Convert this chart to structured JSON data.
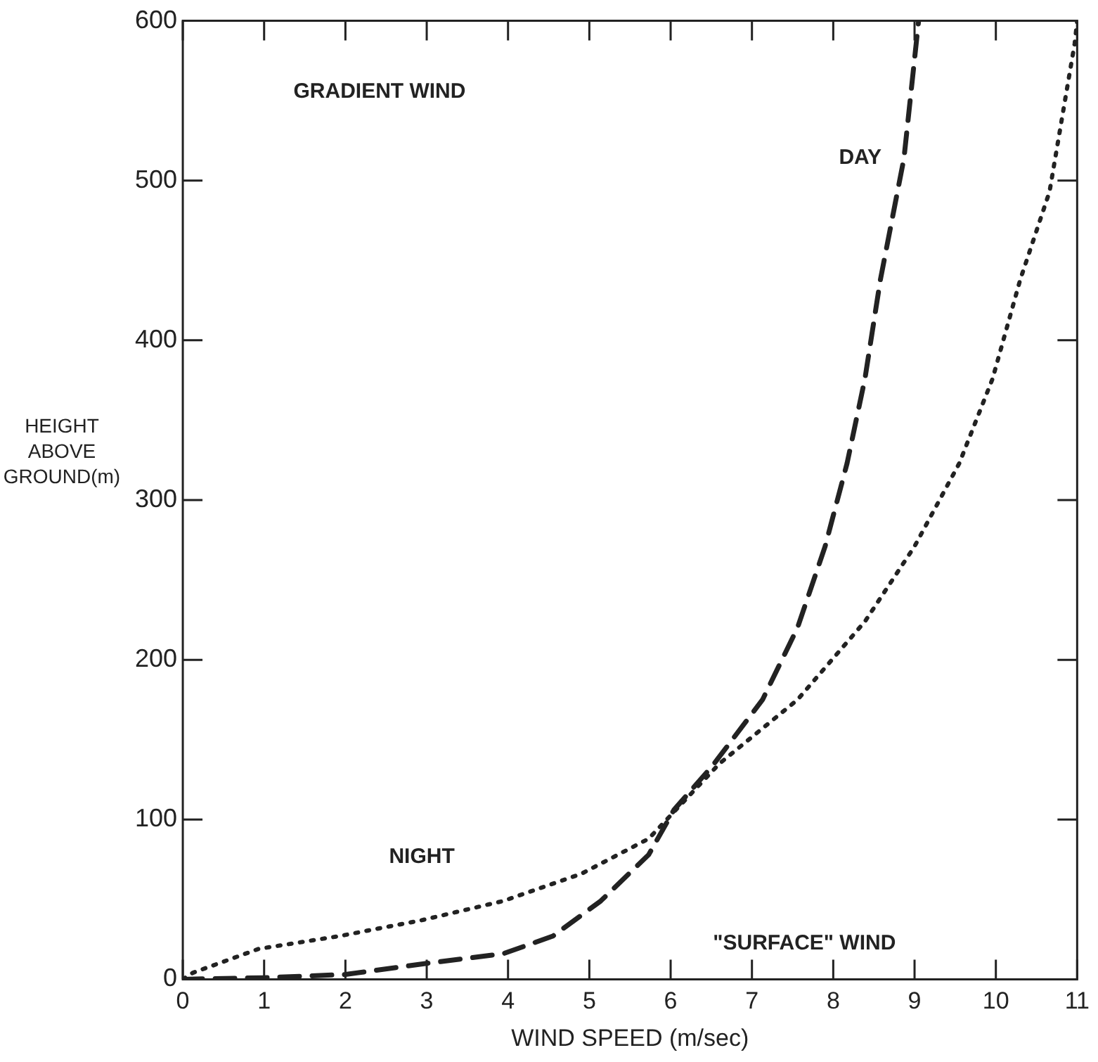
{
  "chart_data": {
    "type": "line",
    "xlabel": "WIND SPEED (m/sec)",
    "ylabel": "HEIGHT ABOVE GROUND(m)",
    "xlim": [
      0,
      11
    ],
    "ylim": [
      0,
      600
    ],
    "xticks": [
      0,
      1,
      2,
      3,
      4,
      5,
      6,
      7,
      8,
      9,
      10,
      11
    ],
    "yticks": [
      0,
      100,
      200,
      300,
      400,
      500,
      600
    ],
    "grid": false,
    "legend": false,
    "marker": "none",
    "series": [
      {
        "name": "DAY",
        "color": "#222222",
        "line_style": "dashed",
        "x": [
          0,
          1,
          2,
          3,
          3.94,
          4.55,
          5.14,
          5.73,
          6.04,
          6.52,
          7.13,
          7.56,
          7.9,
          8.17,
          8.39,
          8.58,
          8.87,
          9.05
        ],
        "values": [
          0,
          1,
          3,
          10,
          16,
          27,
          49,
          78,
          106,
          134,
          175,
          220,
          271,
          323,
          376,
          438,
          514,
          600
        ]
      },
      {
        "name": "NIGHT",
        "color": "#222222",
        "line_style": "dotted",
        "x": [
          0,
          0.12,
          0.93,
          1.92,
          2.94,
          3.94,
          4.9,
          5.73,
          6.1,
          6.6,
          7.56,
          8.39,
          9.0,
          9.55,
          9.96,
          10.3,
          10.66,
          10.97,
          11
        ],
        "values": [
          0,
          4,
          19,
          27,
          37,
          49,
          66,
          88,
          108,
          135,
          175,
          224,
          271,
          323,
          376,
          438,
          493,
          586,
          600
        ]
      }
    ],
    "annotations": [
      "GRADIENT WIND",
      "\"SURFACE\" WIND"
    ]
  }
}
